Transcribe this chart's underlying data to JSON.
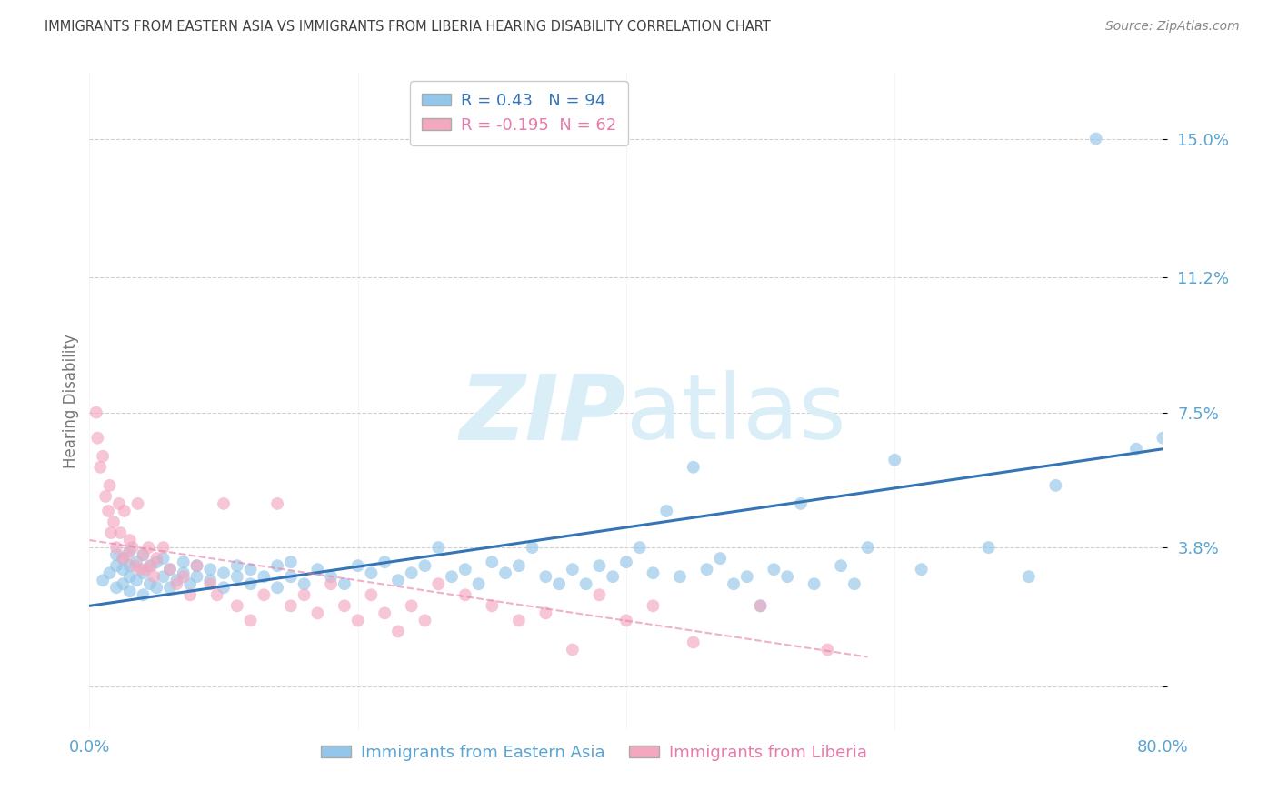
{
  "title": "IMMIGRANTS FROM EASTERN ASIA VS IMMIGRANTS FROM LIBERIA HEARING DISABILITY CORRELATION CHART",
  "source": "Source: ZipAtlas.com",
  "ylabel": "Hearing Disability",
  "xmin": 0.0,
  "xmax": 0.8,
  "ymin": -0.012,
  "ymax": 0.168,
  "blue_R": 0.43,
  "blue_N": 94,
  "pink_R": -0.195,
  "pink_N": 62,
  "blue_color": "#93c6e8",
  "pink_color": "#f4a8c0",
  "blue_line_color": "#3575b5",
  "pink_line_color": "#e87aaa",
  "watermark_color": "#daeef8",
  "grid_color": "#d0d0d0",
  "bg_color": "#ffffff",
  "title_color": "#404040",
  "source_color": "#888888",
  "ylabel_color": "#777777",
  "tick_color_blue": "#5ba3d0",
  "tick_color_pink": "#e87aaa",
  "ytick_vals": [
    0.0,
    0.038,
    0.075,
    0.112,
    0.15
  ],
  "ytick_labels": [
    "",
    "3.8%",
    "7.5%",
    "11.2%",
    "15.0%"
  ],
  "blue_scatter_x": [
    0.01,
    0.015,
    0.02,
    0.02,
    0.02,
    0.025,
    0.025,
    0.025,
    0.03,
    0.03,
    0.03,
    0.03,
    0.035,
    0.035,
    0.04,
    0.04,
    0.04,
    0.045,
    0.045,
    0.05,
    0.05,
    0.055,
    0.055,
    0.06,
    0.06,
    0.065,
    0.07,
    0.07,
    0.075,
    0.08,
    0.08,
    0.09,
    0.09,
    0.1,
    0.1,
    0.11,
    0.11,
    0.12,
    0.12,
    0.13,
    0.14,
    0.14,
    0.15,
    0.15,
    0.16,
    0.17,
    0.18,
    0.19,
    0.2,
    0.21,
    0.22,
    0.23,
    0.24,
    0.25,
    0.26,
    0.27,
    0.28,
    0.29,
    0.3,
    0.31,
    0.32,
    0.33,
    0.34,
    0.35,
    0.36,
    0.37,
    0.38,
    0.39,
    0.4,
    0.41,
    0.42,
    0.43,
    0.44,
    0.45,
    0.46,
    0.47,
    0.48,
    0.49,
    0.5,
    0.51,
    0.52,
    0.53,
    0.54,
    0.56,
    0.57,
    0.58,
    0.6,
    0.62,
    0.67,
    0.7,
    0.72,
    0.75,
    0.78,
    0.8
  ],
  "blue_scatter_y": [
    0.029,
    0.031,
    0.027,
    0.033,
    0.036,
    0.028,
    0.032,
    0.035,
    0.026,
    0.03,
    0.033,
    0.037,
    0.029,
    0.034,
    0.025,
    0.031,
    0.036,
    0.028,
    0.033,
    0.027,
    0.034,
    0.03,
    0.035,
    0.027,
    0.032,
    0.029,
    0.031,
    0.034,
    0.028,
    0.03,
    0.033,
    0.029,
    0.032,
    0.027,
    0.031,
    0.03,
    0.033,
    0.028,
    0.032,
    0.03,
    0.027,
    0.033,
    0.03,
    0.034,
    0.028,
    0.032,
    0.03,
    0.028,
    0.033,
    0.031,
    0.034,
    0.029,
    0.031,
    0.033,
    0.038,
    0.03,
    0.032,
    0.028,
    0.034,
    0.031,
    0.033,
    0.038,
    0.03,
    0.028,
    0.032,
    0.028,
    0.033,
    0.03,
    0.034,
    0.038,
    0.031,
    0.048,
    0.03,
    0.06,
    0.032,
    0.035,
    0.028,
    0.03,
    0.022,
    0.032,
    0.03,
    0.05,
    0.028,
    0.033,
    0.028,
    0.038,
    0.062,
    0.032,
    0.038,
    0.03,
    0.055,
    0.15,
    0.065,
    0.068
  ],
  "pink_scatter_x": [
    0.005,
    0.006,
    0.008,
    0.01,
    0.012,
    0.014,
    0.015,
    0.016,
    0.018,
    0.02,
    0.022,
    0.023,
    0.025,
    0.026,
    0.028,
    0.03,
    0.032,
    0.034,
    0.036,
    0.038,
    0.04,
    0.042,
    0.044,
    0.046,
    0.048,
    0.05,
    0.055,
    0.06,
    0.065,
    0.07,
    0.075,
    0.08,
    0.09,
    0.095,
    0.1,
    0.11,
    0.12,
    0.13,
    0.14,
    0.15,
    0.16,
    0.17,
    0.18,
    0.19,
    0.2,
    0.21,
    0.22,
    0.23,
    0.24,
    0.25,
    0.26,
    0.28,
    0.3,
    0.32,
    0.34,
    0.36,
    0.38,
    0.4,
    0.42,
    0.45,
    0.5,
    0.55
  ],
  "pink_scatter_y": [
    0.075,
    0.068,
    0.06,
    0.063,
    0.052,
    0.048,
    0.055,
    0.042,
    0.045,
    0.038,
    0.05,
    0.042,
    0.035,
    0.048,
    0.036,
    0.04,
    0.038,
    0.033,
    0.05,
    0.032,
    0.036,
    0.032,
    0.038,
    0.033,
    0.03,
    0.035,
    0.038,
    0.032,
    0.028,
    0.03,
    0.025,
    0.033,
    0.028,
    0.025,
    0.05,
    0.022,
    0.018,
    0.025,
    0.05,
    0.022,
    0.025,
    0.02,
    0.028,
    0.022,
    0.018,
    0.025,
    0.02,
    0.015,
    0.022,
    0.018,
    0.028,
    0.025,
    0.022,
    0.018,
    0.02,
    0.01,
    0.025,
    0.018,
    0.022,
    0.012,
    0.022,
    0.01
  ],
  "blue_line_x0": 0.0,
  "blue_line_x1": 0.8,
  "blue_line_y0": 0.022,
  "blue_line_y1": 0.065,
  "pink_line_x0": 0.0,
  "pink_line_x1": 0.58,
  "pink_line_y0": 0.04,
  "pink_line_y1": 0.008
}
